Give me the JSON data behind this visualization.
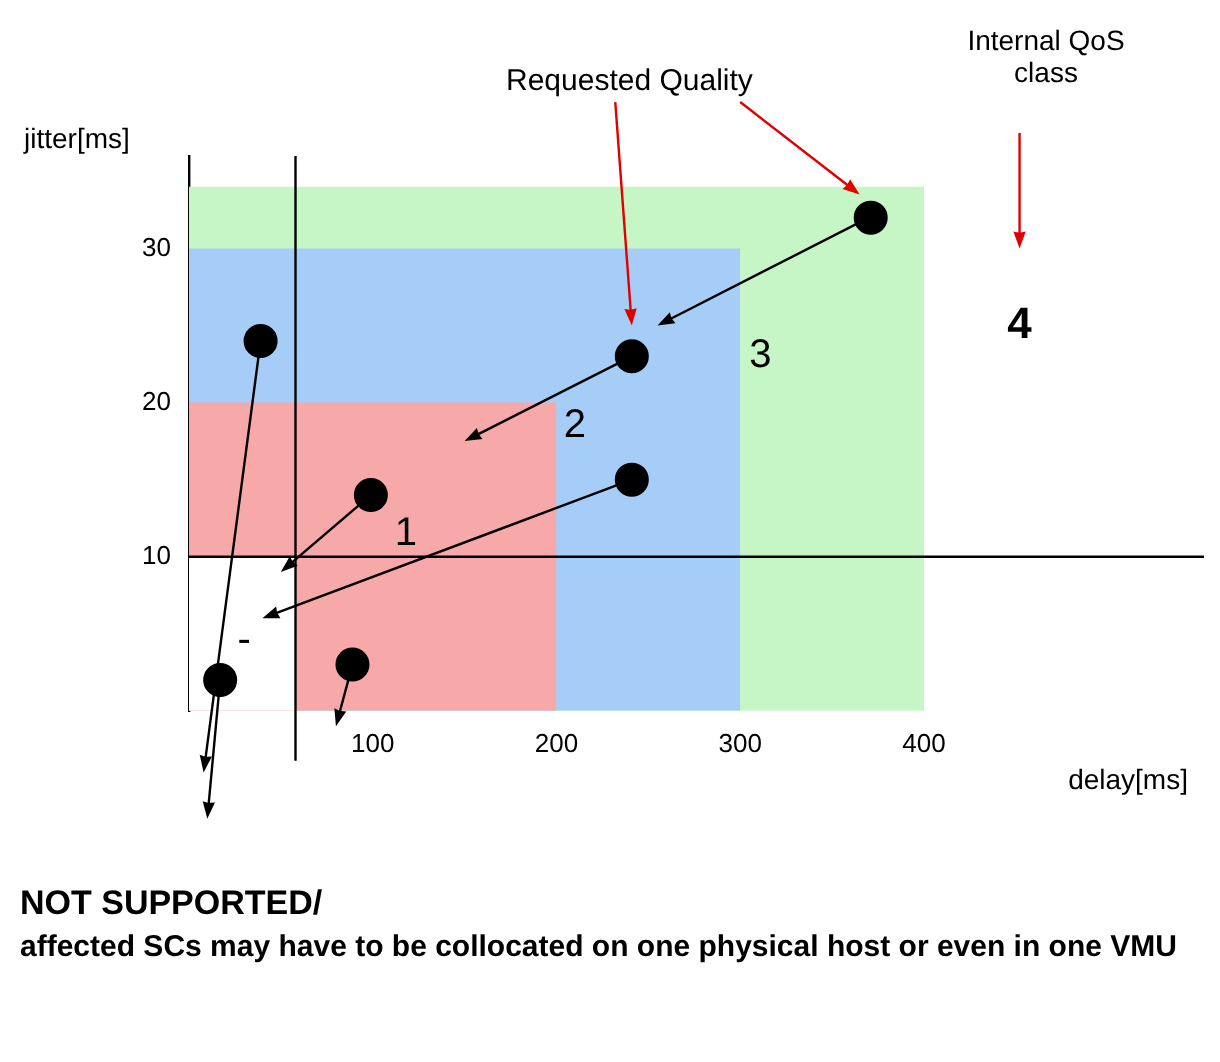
{
  "chart_data": {
    "type": "scatter",
    "xlabel": "delay[ms]",
    "ylabel": "jitter[ms]",
    "xlim": [
      0,
      400
    ],
    "ylim": [
      0,
      36
    ],
    "xticks": [
      100,
      200,
      300,
      400
    ],
    "yticks": [
      10,
      20,
      30
    ],
    "grid": false,
    "legend": false,
    "series": [
      {
        "type": "area",
        "color": "#c6f5c6",
        "x": [
          0,
          400
        ],
        "values": [
          34,
          34
        ]
      },
      {
        "type": "area",
        "color": "#a6cdf7",
        "x": [
          0,
          300
        ],
        "values": [
          30,
          30
        ]
      },
      {
        "type": "area",
        "color": "#f7a8a8",
        "x": [
          0,
          200
        ],
        "values": [
          20,
          20
        ]
      },
      {
        "type": "area",
        "color": "#ffffff",
        "x": [
          0,
          58
        ],
        "values": [
          10,
          10
        ]
      },
      {
        "marker": "circle",
        "color": "#000000",
        "x": [
          39,
          99,
          17,
          89,
          241,
          241,
          371
        ],
        "values": [
          24,
          14,
          2,
          3,
          23,
          15,
          32
        ]
      }
    ],
    "ref_lines": [
      {
        "axis": "x",
        "value": 58,
        "color": "#000000"
      },
      {
        "axis": "y",
        "value": 10,
        "color": "#000000"
      }
    ],
    "annotations": [
      "4",
      "3",
      "2",
      "1",
      "-",
      "Requested Quality",
      "Internal QoS class",
      "NOT SUPPORTED/",
      "affected SCs may have to be collocated on one physical host or even in one VMU"
    ]
  }
}
